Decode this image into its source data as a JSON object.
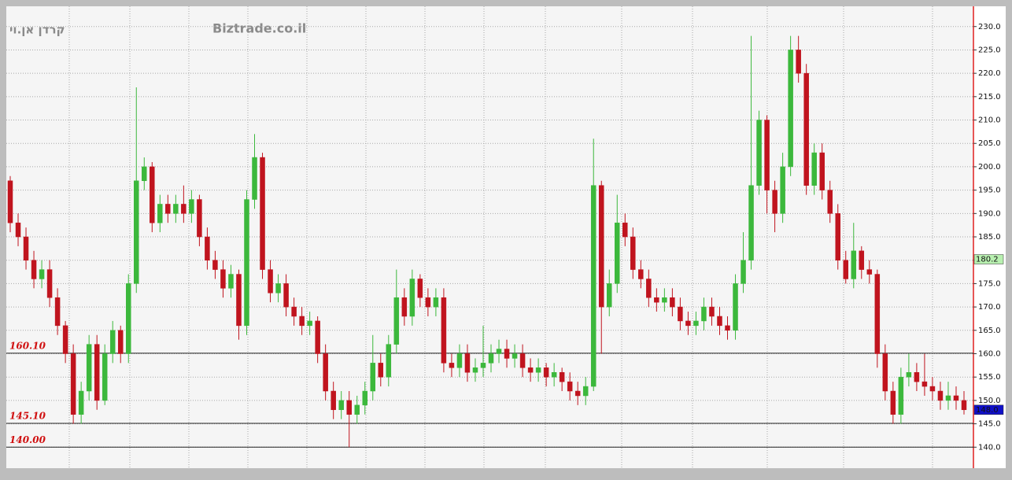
{
  "chart_data": {
    "type": "candlestick",
    "title": "קרדן אן.וי",
    "subtitle": "Biztrade.co.il",
    "ylim": [
      135.5,
      234
    ],
    "yticks": [
      {
        "value": 140,
        "label": "140.0"
      },
      {
        "value": 145,
        "label": "145.0"
      },
      {
        "value": 150,
        "label": "150.0"
      },
      {
        "value": 155,
        "label": "155.0"
      },
      {
        "value": 160,
        "label": "160.0"
      },
      {
        "value": 165,
        "label": "165.0"
      },
      {
        "value": 170,
        "label": "170.0"
      },
      {
        "value": 175,
        "label": "175.0"
      },
      {
        "value": 180,
        "label": "180.0"
      },
      {
        "value": 185,
        "label": "185.0"
      },
      {
        "value": 190,
        "label": "190.0"
      },
      {
        "value": 195,
        "label": "195.0"
      },
      {
        "value": 200,
        "label": "200.0"
      },
      {
        "value": 205,
        "label": "205.0"
      },
      {
        "value": 210,
        "label": "210.0"
      },
      {
        "value": 215,
        "label": "215.0"
      },
      {
        "value": 220,
        "label": "220.0"
      },
      {
        "value": 225,
        "label": "225.0"
      },
      {
        "value": 230,
        "label": "230.0"
      }
    ],
    "grid": true,
    "up_color": "#3cb83c",
    "down_color": "#c0141e",
    "levels": [
      {
        "value": 160.1,
        "label": "160.10"
      },
      {
        "value": 145.1,
        "label": "145.10"
      },
      {
        "value": 140,
        "label": "140.00"
      }
    ],
    "markers": [
      {
        "value": 180.2,
        "label": "180.2",
        "color": "#b8f0b0"
      },
      {
        "value": 148,
        "label": "148.0",
        "color": "#1010c8"
      }
    ],
    "open": [
      197,
      188,
      185,
      180,
      176,
      178,
      172,
      166,
      160,
      147,
      152,
      162,
      150,
      160,
      165,
      160,
      175,
      197,
      200,
      188,
      192,
      190,
      192,
      190,
      193,
      185,
      180,
      178,
      174,
      177,
      166,
      193,
      202,
      178,
      173,
      175,
      170,
      168,
      166,
      167,
      160,
      152,
      148,
      150,
      147,
      149,
      152,
      158,
      155,
      162,
      172,
      168,
      176,
      172,
      170,
      172,
      158,
      157,
      160,
      156,
      157,
      158,
      160,
      161,
      159,
      160,
      157,
      156,
      157,
      155,
      156,
      154,
      152,
      151,
      153,
      196,
      170,
      175,
      188,
      185,
      178,
      176,
      172,
      171,
      172,
      170,
      167,
      166,
      167,
      170,
      168,
      166,
      165,
      175,
      180,
      196,
      210,
      195,
      190,
      200,
      225,
      220,
      196,
      203,
      195,
      190,
      180,
      176,
      182,
      178,
      177,
      160,
      152,
      147,
      155,
      156,
      154,
      153,
      152,
      150,
      151,
      150
    ],
    "high": [
      198,
      190,
      187,
      182,
      180,
      180,
      174,
      167,
      162,
      154,
      164,
      164,
      162,
      167,
      166,
      177,
      217,
      202,
      201,
      194,
      194,
      194,
      196,
      195,
      194,
      187,
      182,
      180,
      179,
      178,
      195,
      207,
      203,
      180,
      177,
      177,
      172,
      170,
      169,
      168,
      162,
      154,
      152,
      152,
      151,
      154,
      164,
      160,
      164,
      178,
      174,
      178,
      177,
      174,
      174,
      174,
      160,
      162,
      162,
      159,
      166,
      162,
      163,
      163,
      162,
      162,
      159,
      159,
      158,
      158,
      157,
      156,
      154,
      155,
      206,
      197,
      178,
      194,
      190,
      187,
      180,
      178,
      174,
      174,
      174,
      172,
      169,
      169,
      172,
      172,
      170,
      168,
      177,
      186,
      228,
      212,
      211,
      197,
      203,
      228,
      228,
      222,
      205,
      205,
      197,
      192,
      182,
      188,
      183,
      180,
      178,
      162,
      154,
      157,
      160,
      158,
      160,
      155,
      154,
      154,
      153,
      152
    ],
    "low": [
      186,
      183,
      178,
      174,
      174,
      170,
      164,
      158,
      145,
      145,
      150,
      148,
      149,
      158,
      158,
      158,
      173,
      195,
      186,
      186,
      188,
      188,
      188,
      188,
      183,
      178,
      176,
      172,
      172,
      163,
      164,
      191,
      176,
      171,
      171,
      168,
      166,
      164,
      164,
      158,
      150,
      146,
      146,
      140,
      145,
      147,
      150,
      153,
      153,
      160,
      166,
      166,
      170,
      168,
      168,
      156,
      155,
      155,
      154,
      154,
      155,
      156,
      158,
      157,
      157,
      155,
      154,
      154,
      153,
      153,
      152,
      150,
      149,
      149,
      152,
      160,
      168,
      173,
      183,
      176,
      174,
      170,
      169,
      169,
      168,
      165,
      164,
      164,
      165,
      166,
      164,
      163,
      163,
      173,
      178,
      194,
      190,
      186,
      188,
      198,
      218,
      194,
      194,
      193,
      188,
      178,
      175,
      174,
      176,
      175,
      157,
      150,
      145,
      145,
      153,
      152,
      151,
      150,
      148,
      148,
      148,
      147
    ],
    "close": [
      188,
      185,
      180,
      176,
      178,
      172,
      166,
      160,
      147,
      152,
      162,
      150,
      160,
      165,
      160,
      175,
      197,
      200,
      188,
      192,
      190,
      192,
      190,
      193,
      185,
      180,
      178,
      174,
      177,
      166,
      193,
      202,
      178,
      173,
      175,
      170,
      168,
      166,
      167,
      160,
      152,
      148,
      150,
      147,
      149,
      152,
      158,
      155,
      162,
      172,
      168,
      176,
      172,
      170,
      172,
      158,
      157,
      160,
      156,
      157,
      158,
      160,
      161,
      159,
      160,
      157,
      156,
      157,
      155,
      156,
      154,
      152,
      151,
      153,
      196,
      170,
      175,
      188,
      185,
      178,
      176,
      172,
      171,
      172,
      170,
      167,
      166,
      167,
      170,
      168,
      166,
      165,
      175,
      180,
      196,
      210,
      195,
      190,
      200,
      225,
      220,
      196,
      203,
      195,
      190,
      180,
      176,
      182,
      178,
      177,
      160,
      152,
      147,
      155,
      156,
      154,
      153,
      152,
      150,
      151,
      150,
      148
    ]
  }
}
